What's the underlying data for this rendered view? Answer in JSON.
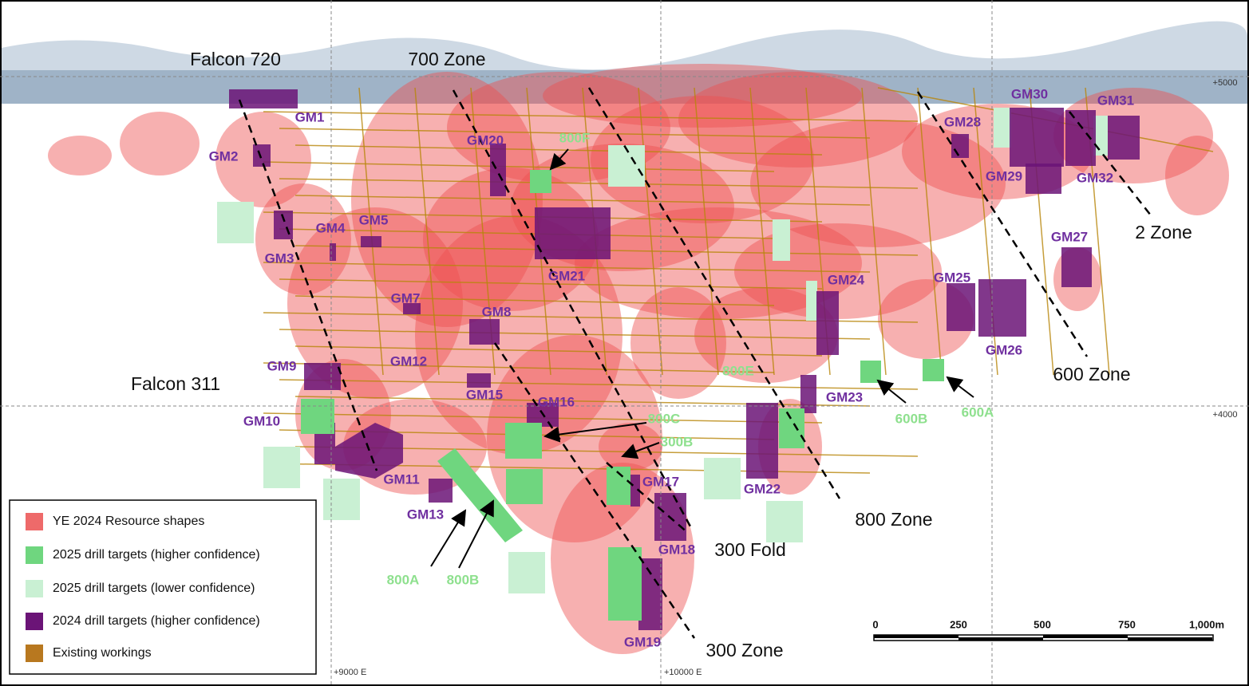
{
  "zone_labels": [
    "Falcon 720",
    "700 Zone",
    "Falcon 311",
    "2 Zone",
    "600 Zone",
    "800 Zone",
    "300 Fold",
    "300 Zone"
  ],
  "target_labels": [
    "GM1",
    "GM2",
    "GM3",
    "GM4",
    "GM5",
    "GM7",
    "GM8",
    "GM9",
    "GM10",
    "GM11",
    "GM12",
    "GM13",
    "GM15",
    "GM16",
    "GM17",
    "GM18",
    "GM19",
    "GM20",
    "GM21",
    "GM22",
    "GM23",
    "GM24",
    "GM25",
    "GM26",
    "GM27",
    "GM28",
    "GM29",
    "GM30",
    "GM31",
    "GM32"
  ],
  "drill_target_labels": [
    "800F",
    "800E",
    "800C",
    "300B",
    "600B",
    "600A",
    "800A",
    "800B"
  ],
  "grid_labels": [
    "+5000",
    "+4000",
    "+9000 E",
    "+10000 E"
  ],
  "legend": {
    "items": [
      "YE 2024 Resource shapes",
      "2025 drill targets (higher confidence)",
      "2025 drill targets (lower confidence)",
      "2024 drill targets (higher confidence)",
      "Existing workings"
    ]
  },
  "scale_bar": {
    "labels": [
      "0",
      "250",
      "500",
      "750",
      "1,000m"
    ]
  }
}
